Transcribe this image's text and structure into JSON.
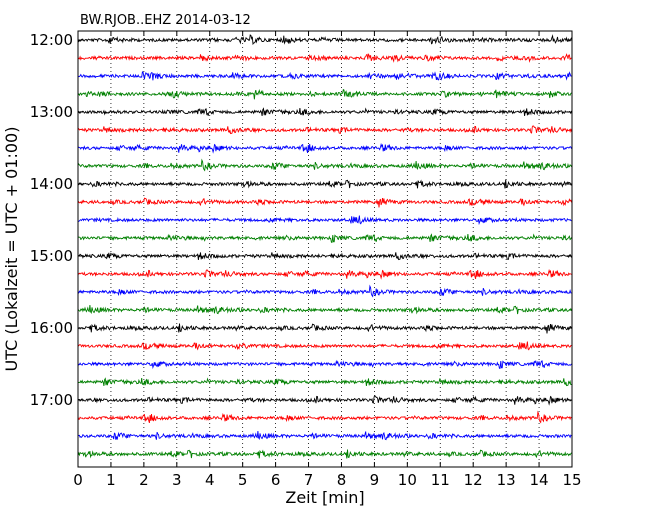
{
  "chart_data": {
    "type": "line",
    "title": "BW.RJOB..EHZ 2014-03-12",
    "xlabel": "Zeit  [min]",
    "ylabel": "UTC (Lokalzeit = UTC + 01:00)",
    "xlim": [
      0,
      15
    ],
    "x_ticks": [
      "0",
      "1",
      "2",
      "3",
      "4",
      "5",
      "6",
      "7",
      "8",
      "9",
      "10",
      "11",
      "12",
      "13",
      "14",
      "15"
    ],
    "y_ticks": [
      "12:00",
      "13:00",
      "14:00",
      "15:00",
      "16:00",
      "17:00"
    ],
    "grid": "vertical dotted at each minute",
    "trace_interval_minutes": 15,
    "trace_colors": [
      "#000000",
      "#ff0000",
      "#0000ff",
      "#008000"
    ],
    "trace_start_times": [
      "12:00",
      "12:15",
      "12:30",
      "12:45",
      "13:00",
      "13:15",
      "13:30",
      "13:45",
      "14:00",
      "14:15",
      "14:30",
      "14:45",
      "15:00",
      "15:15",
      "15:30",
      "15:45",
      "16:00",
      "16:15",
      "16:30",
      "16:45",
      "17:00",
      "17:15",
      "17:30",
      "17:45"
    ]
  }
}
